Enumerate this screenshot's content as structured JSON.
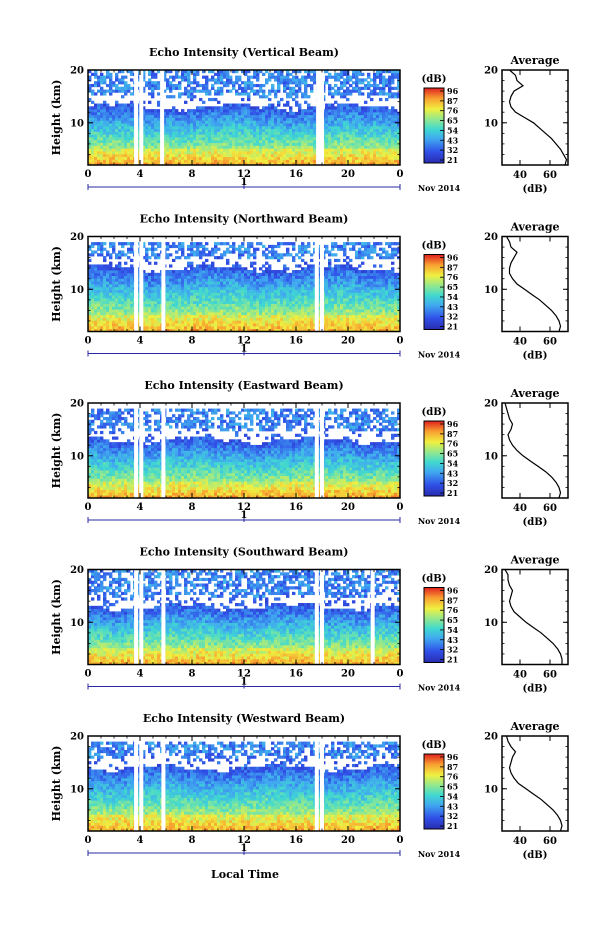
{
  "chart_data": [
    {
      "type": "heatmap",
      "title": "Echo Intensity (Vertical Beam)",
      "ylabel": "Height (km)",
      "xlabel": "Local Time",
      "x_ticks": [
        "0",
        "4",
        "8",
        "12",
        "16",
        "20",
        "0"
      ],
      "y_ticks": [
        "20",
        "10"
      ],
      "xlim": [
        0,
        24
      ],
      "ylim": [
        2,
        20
      ],
      "date_tick": "1",
      "date_label": "Nov 2014",
      "colorbar": {
        "unit": "(dB)",
        "ticks": [
          "96",
          "87",
          "76",
          "65",
          "54",
          "43",
          "32",
          "21"
        ]
      },
      "data_gaps_hours": [
        3.7,
        4.1,
        5.7,
        17.7,
        18.0
      ],
      "upper_layer_km": [
        15,
        20
      ],
      "lower_layer_top_km": 13,
      "profile": {
        "title": "Average",
        "xlabel": "(dB)",
        "x_ticks": [
          "40",
          "60"
        ],
        "y_ticks": [
          "20",
          "10"
        ],
        "xlim": [
          28,
          72
        ],
        "ylim": [
          2,
          20
        ],
        "heights": [
          2,
          3,
          4,
          5,
          6,
          7,
          8,
          9,
          10,
          11,
          12,
          13,
          14,
          15,
          16,
          17,
          18,
          19,
          20
        ],
        "values": [
          70,
          71,
          69,
          67,
          64,
          61,
          57,
          53,
          49,
          43,
          37,
          34,
          33,
          34,
          36,
          42,
          38,
          37,
          33
        ]
      }
    },
    {
      "type": "heatmap",
      "title": "Echo Intensity (Northward Beam)",
      "ylabel": "Height (km)",
      "xlabel": "",
      "x_ticks": [
        "0",
        "4",
        "8",
        "12",
        "16",
        "20",
        "0"
      ],
      "y_ticks": [
        "20",
        "10"
      ],
      "xlim": [
        0,
        24
      ],
      "ylim": [
        2,
        20
      ],
      "date_tick": "1",
      "date_label": "Nov 2014",
      "colorbar": {
        "unit": "(dB)",
        "ticks": [
          "96",
          "87",
          "76",
          "65",
          "54",
          "43",
          "32",
          "21"
        ]
      },
      "data_gaps_hours": [
        3.7,
        4.1,
        5.8,
        17.6,
        18.0
      ],
      "upper_layer_km": [
        16,
        19
      ],
      "lower_layer_top_km": 14,
      "profile": {
        "title": "Average",
        "xlabel": "(dB)",
        "x_ticks": [
          "40",
          "60"
        ],
        "y_ticks": [
          "20",
          "10"
        ],
        "xlim": [
          28,
          72
        ],
        "ylim": [
          2,
          20
        ],
        "heights": [
          2,
          3,
          4,
          5,
          6,
          7,
          8,
          9,
          10,
          11,
          12,
          13,
          14,
          15,
          16,
          17,
          18,
          19,
          20
        ],
        "values": [
          66,
          67,
          66,
          64,
          61,
          57,
          53,
          48,
          43,
          38,
          35,
          33,
          33,
          34,
          36,
          38,
          34,
          33,
          31
        ]
      }
    },
    {
      "type": "heatmap",
      "title": "Echo Intensity (Eastward Beam)",
      "ylabel": "Height (km)",
      "xlabel": "",
      "x_ticks": [
        "0",
        "4",
        "8",
        "12",
        "16",
        "20",
        "0"
      ],
      "y_ticks": [
        "20",
        "10"
      ],
      "xlim": [
        0,
        24
      ],
      "ylim": [
        2,
        20
      ],
      "date_tick": "1",
      "date_label": "Nov 2014",
      "colorbar": {
        "unit": "(dB)",
        "ticks": [
          "96",
          "87",
          "76",
          "65",
          "54",
          "43",
          "32",
          "21"
        ]
      },
      "data_gaps_hours": [
        3.7,
        4.1,
        5.8,
        17.6,
        18.0
      ],
      "upper_layer_km": [
        15,
        19
      ],
      "lower_layer_top_km": 13,
      "profile": {
        "title": "Average",
        "xlabel": "(dB)",
        "x_ticks": [
          "40",
          "60"
        ],
        "y_ticks": [
          "20",
          "10"
        ],
        "xlim": [
          28,
          72
        ],
        "ylim": [
          2,
          20
        ],
        "heights": [
          2,
          3,
          4,
          5,
          6,
          7,
          8,
          9,
          10,
          11,
          12,
          13,
          14,
          15,
          16,
          17,
          18,
          19,
          20
        ],
        "values": [
          66,
          67,
          66,
          64,
          61,
          57,
          52,
          47,
          42,
          38,
          35,
          33,
          32,
          34,
          35,
          33,
          32,
          31,
          30
        ]
      }
    },
    {
      "type": "heatmap",
      "title": "Echo Intensity (Southward Beam)",
      "ylabel": "Height (km)",
      "xlabel": "",
      "x_ticks": [
        "0",
        "4",
        "8",
        "12",
        "16",
        "20",
        "0"
      ],
      "y_ticks": [
        "20",
        "10"
      ],
      "xlim": [
        0,
        24
      ],
      "ylim": [
        2,
        20
      ],
      "date_tick": "1",
      "date_label": "Nov 2014",
      "colorbar": {
        "unit": "(dB)",
        "ticks": [
          "96",
          "87",
          "76",
          "65",
          "54",
          "43",
          "32",
          "21"
        ]
      },
      "data_gaps_hours": [
        3.7,
        4.1,
        5.8,
        17.6,
        18.0,
        21.9
      ],
      "upper_layer_km": [
        15,
        20
      ],
      "lower_layer_top_km": 13,
      "profile": {
        "title": "Average",
        "xlabel": "(dB)",
        "x_ticks": [
          "40",
          "60"
        ],
        "y_ticks": [
          "20",
          "10"
        ],
        "xlim": [
          28,
          72
        ],
        "ylim": [
          2,
          20
        ],
        "heights": [
          2,
          3,
          4,
          5,
          6,
          7,
          8,
          9,
          10,
          11,
          12,
          13,
          14,
          15,
          16,
          17,
          18,
          19,
          20
        ],
        "values": [
          68,
          68,
          67,
          65,
          62,
          58,
          54,
          49,
          44,
          40,
          36,
          34,
          33,
          34,
          35,
          33,
          32,
          32,
          30
        ]
      }
    },
    {
      "type": "heatmap",
      "title": "Echo Intensity (Westward Beam)",
      "ylabel": "Height (km)",
      "xlabel": "Local Time",
      "x_ticks": [
        "0",
        "4",
        "8",
        "12",
        "16",
        "20",
        "0"
      ],
      "y_ticks": [
        "20",
        "10"
      ],
      "xlim": [
        0,
        24
      ],
      "ylim": [
        2,
        20
      ],
      "date_tick": "1",
      "date_label": "Nov 2014",
      "colorbar": {
        "unit": "(dB)",
        "ticks": [
          "96",
          "87",
          "76",
          "65",
          "54",
          "43",
          "32",
          "21"
        ]
      },
      "data_gaps_hours": [
        3.7,
        4.1,
        5.8,
        17.6,
        18.0
      ],
      "upper_layer_km": [
        16,
        19
      ],
      "lower_layer_top_km": 14,
      "profile": {
        "title": "Average",
        "xlabel": "(dB)",
        "x_ticks": [
          "40",
          "60"
        ],
        "y_ticks": [
          "20",
          "10"
        ],
        "xlim": [
          28,
          72
        ],
        "ylim": [
          2,
          20
        ],
        "heights": [
          2,
          3,
          4,
          5,
          6,
          7,
          8,
          9,
          10,
          11,
          12,
          13,
          14,
          15,
          16,
          17,
          18,
          19,
          20
        ],
        "values": [
          67,
          68,
          67,
          65,
          62,
          58,
          54,
          49,
          44,
          39,
          36,
          34,
          33,
          34,
          35,
          37,
          34,
          32,
          31
        ]
      }
    }
  ]
}
